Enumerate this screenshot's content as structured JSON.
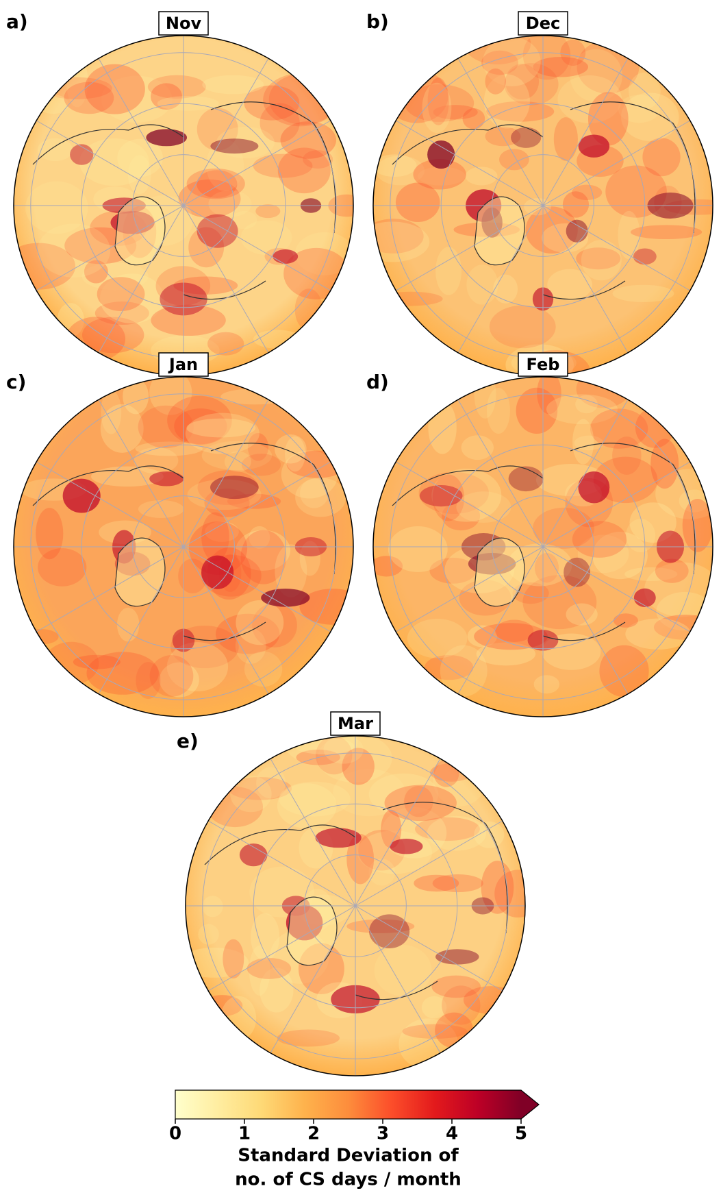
{
  "panels": [
    {
      "label": "a)",
      "title": "Nov",
      "color": "#fdd488"
    },
    {
      "label": "b)",
      "title": "Dec",
      "color": "#fcc274"
    },
    {
      "label": "c)",
      "title": "Jan",
      "color": "#fba55a"
    },
    {
      "label": "d)",
      "title": "Feb",
      "color": "#fcb566"
    },
    {
      "label": "e)",
      "title": "Mar",
      "color": "#fdd083"
    }
  ],
  "colorbar": {
    "range": [
      0,
      5
    ],
    "ticks": [
      0,
      1,
      2,
      3,
      4,
      5
    ],
    "extend": "max",
    "colors": [
      "#ffffcc",
      "#ffeda0",
      "#fed976",
      "#feb24c",
      "#fd8d3c",
      "#fc4e2a",
      "#e31a1c",
      "#bd0026",
      "#800026"
    ],
    "label": [
      "Standard Deviation of",
      "no. of CS days / month"
    ]
  }
}
